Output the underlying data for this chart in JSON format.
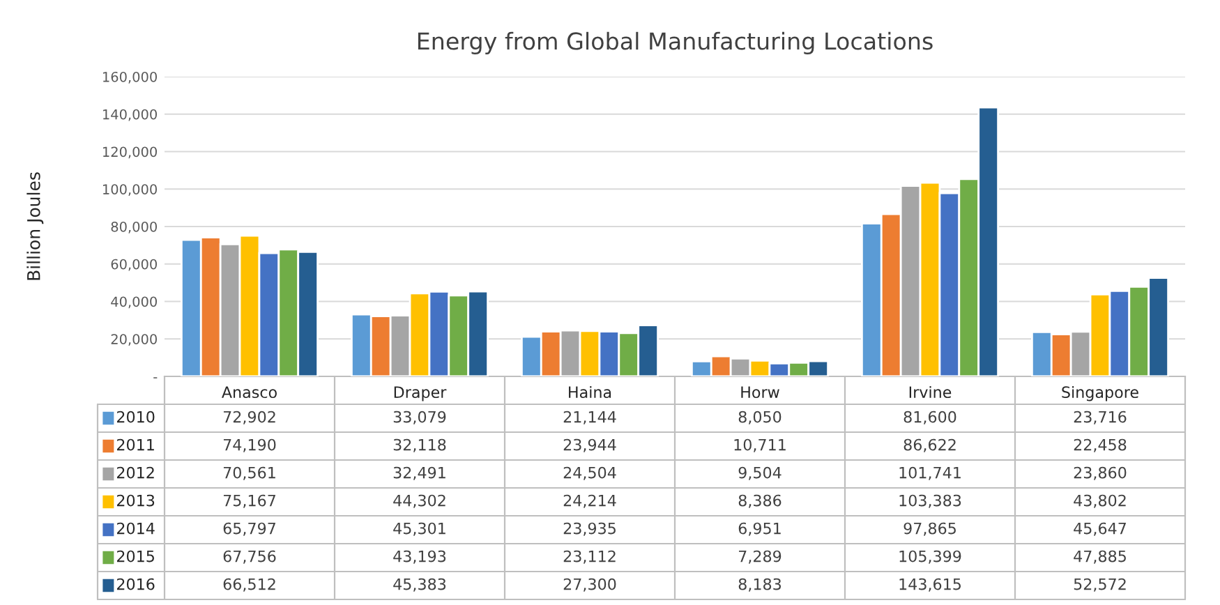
{
  "chart_data": {
    "type": "bar",
    "title": "Energy from Global Manufacturing Locations",
    "ylabel": "Billion Joules",
    "categories": [
      "Anasco",
      "Draper",
      "Haina",
      "Horw",
      "Irvine",
      "Singapore"
    ],
    "series": [
      {
        "name": "2010",
        "color": "#5b9bd5",
        "values": [
          72902,
          33079,
          21144,
          8050,
          81600,
          23716
        ],
        "value_labels": [
          "72,902",
          "33,079",
          "21,144",
          "8,050",
          "81,600",
          "23,716"
        ]
      },
      {
        "name": "2011",
        "color": "#ed7d31",
        "values": [
          74190,
          32118,
          23944,
          10711,
          86622,
          22458
        ],
        "value_labels": [
          "74,190",
          "32,118",
          "23,944",
          "10,711",
          "86,622",
          "22,458"
        ]
      },
      {
        "name": "2012",
        "color": "#a5a5a5",
        "values": [
          70561,
          32491,
          24504,
          9504,
          101741,
          23860
        ],
        "value_labels": [
          "70,561",
          "32,491",
          "24,504",
          "9,504",
          "101,741",
          "23,860"
        ]
      },
      {
        "name": "2013",
        "color": "#ffc000",
        "values": [
          75167,
          44302,
          24214,
          8386,
          103383,
          43802
        ],
        "value_labels": [
          "75,167",
          "44,302",
          "24,214",
          "8,386",
          "103,383",
          "43,802"
        ]
      },
      {
        "name": "2014",
        "color": "#4472c4",
        "values": [
          65797,
          45301,
          23935,
          6951,
          97865,
          45647
        ],
        "value_labels": [
          "65,797",
          "45,301",
          "23,935",
          "6,951",
          "97,865",
          "45,647"
        ]
      },
      {
        "name": "2015",
        "color": "#70ad47",
        "values": [
          67756,
          43193,
          23112,
          7289,
          105399,
          47885
        ],
        "value_labels": [
          "67,756",
          "43,193",
          "23,112",
          "7,289",
          "105,399",
          "47,885"
        ]
      },
      {
        "name": "2016",
        "color": "#255e91",
        "values": [
          66512,
          45383,
          27300,
          8183,
          143615,
          52572
        ],
        "value_labels": [
          "66,512",
          "45,383",
          "27,300",
          "8,183",
          "143,615",
          "52,572"
        ]
      }
    ],
    "ylim": [
      0,
      160000
    ],
    "yticks": [
      {
        "value": 0,
        "label": "-"
      },
      {
        "value": 20000,
        "label": "20,000"
      },
      {
        "value": 40000,
        "label": "40,000"
      },
      {
        "value": 60000,
        "label": "60,000"
      },
      {
        "value": 80000,
        "label": "80,000"
      },
      {
        "value": 100000,
        "label": "100,000"
      },
      {
        "value": 120000,
        "label": "120,000"
      },
      {
        "value": 140000,
        "label": "140,000"
      },
      {
        "value": 160000,
        "label": "160,000"
      }
    ],
    "grid": "y",
    "legend": "bottom"
  }
}
